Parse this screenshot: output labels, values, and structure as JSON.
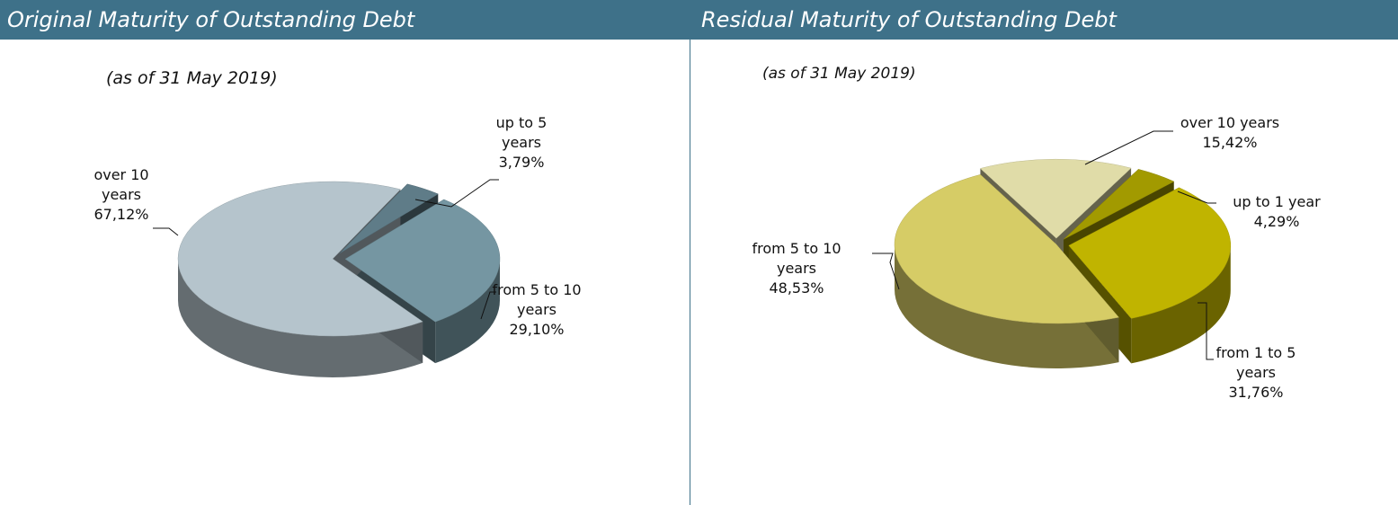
{
  "chart_data": [
    {
      "type": "pie",
      "title": "Original Maturity of Outstanding Debt",
      "subtitle": "(as of 31 May 2019)",
      "categories": [
        "up to 5 years",
        "from 5 to 10 years",
        "over 10 years"
      ],
      "values": [
        3.79,
        29.1,
        67.12
      ],
      "value_labels": [
        "3,79%",
        "29,10%",
        "67,12%"
      ],
      "colors": [
        "#5f7c88",
        "#7596a2",
        "#b5c4cc"
      ]
    },
    {
      "type": "pie",
      "title": "Residual Maturity of Outstanding Debt",
      "subtitle": "(as of 31 May 2019)",
      "categories": [
        "over 10 years",
        "up to 1 year",
        "from 1 to 5 years",
        "from 5 to 10 years"
      ],
      "values": [
        15.42,
        4.29,
        31.76,
        48.53
      ],
      "value_labels": [
        "15,42%",
        "4,29%",
        "31,76%",
        "48,53%"
      ],
      "colors": [
        "#e0dca8",
        "#a29a00",
        "#c0b400",
        "#d6cc66"
      ]
    }
  ]
}
